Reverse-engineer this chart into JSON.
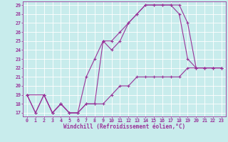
{
  "xlabel": "Windchill (Refroidissement éolien,°C)",
  "bg_color": "#c8ecec",
  "line_color": "#993399",
  "grid_color": "#ffffff",
  "axis_color": "#993399",
  "xmin": -0.5,
  "xmax": 23.5,
  "ymin": 16.6,
  "ymax": 29.4,
  "line1_x": [
    0,
    1,
    2,
    3,
    4,
    5,
    6,
    7,
    8,
    9,
    10,
    11,
    12,
    13,
    14,
    15,
    16,
    17,
    18,
    19,
    20,
    21,
    22,
    23
  ],
  "line1_y": [
    19,
    17,
    19,
    17,
    18,
    17,
    17,
    18,
    18,
    25,
    24,
    25,
    27,
    28,
    29,
    29,
    29,
    29,
    29,
    27,
    22,
    22,
    22,
    22
  ],
  "line2_x": [
    0,
    2,
    3,
    4,
    5,
    6,
    7,
    8,
    9,
    10,
    11,
    12,
    13,
    14,
    15,
    16,
    17,
    18,
    19,
    20,
    21,
    22,
    23
  ],
  "line2_y": [
    19,
    19,
    17,
    18,
    17,
    17,
    21,
    23,
    25,
    25,
    26,
    27,
    28,
    29,
    29,
    29,
    29,
    28,
    23,
    22,
    22,
    22,
    22
  ],
  "line3_x": [
    0,
    1,
    2,
    3,
    4,
    5,
    6,
    7,
    8,
    9,
    10,
    11,
    12,
    13,
    14,
    15,
    16,
    17,
    18,
    19,
    20,
    21,
    22,
    23
  ],
  "line3_y": [
    19,
    17,
    19,
    17,
    18,
    17,
    17,
    18,
    18,
    18,
    19,
    20,
    20,
    21,
    21,
    21,
    21,
    21,
    21,
    22,
    22,
    22,
    22,
    22
  ],
  "yticks": [
    17,
    18,
    19,
    20,
    21,
    22,
    23,
    24,
    25,
    26,
    27,
    28,
    29
  ],
  "xticks": [
    0,
    1,
    2,
    3,
    4,
    5,
    6,
    7,
    8,
    9,
    10,
    11,
    12,
    13,
    14,
    15,
    16,
    17,
    18,
    19,
    20,
    21,
    22,
    23
  ],
  "tick_fontsize": 4.8,
  "xlabel_fontsize": 5.5,
  "linewidth": 0.8,
  "markersize": 3.0
}
